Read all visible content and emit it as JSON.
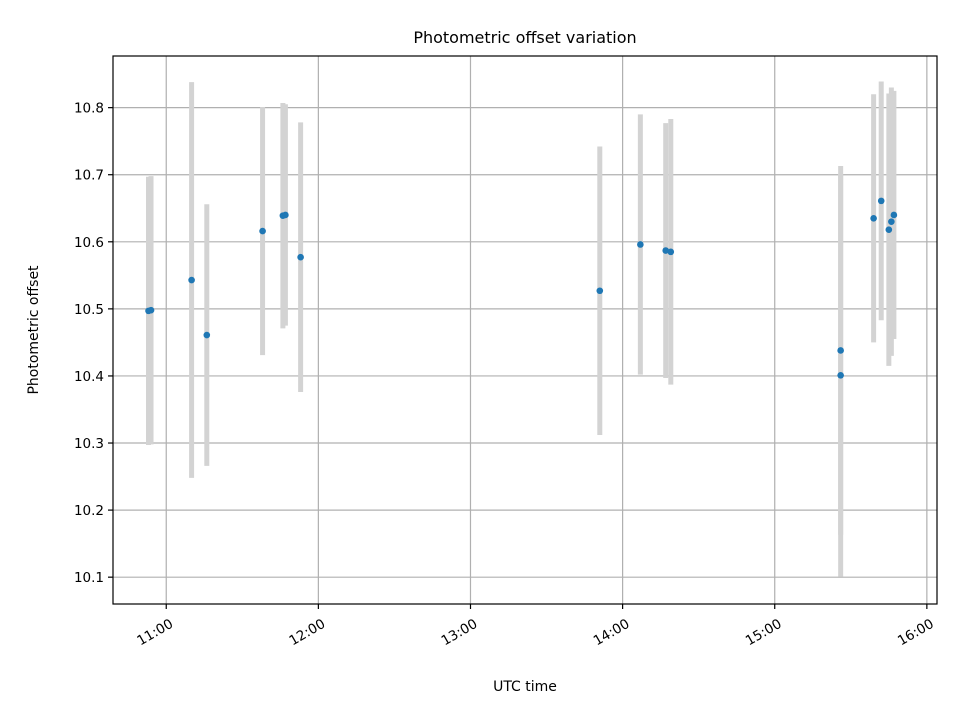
{
  "chart_data": {
    "type": "scatter",
    "title": "Photometric offset variation",
    "xlabel": "UTC time",
    "ylabel": "Photometric offset",
    "x_axis": {
      "type": "time",
      "range": [
        "10:39",
        "16:04"
      ],
      "ticks": [
        "11:00",
        "12:00",
        "13:00",
        "14:00",
        "15:00",
        "16:00"
      ]
    },
    "y_axis": {
      "range": [
        10.06,
        10.877
      ],
      "ticks": [
        10.1,
        10.2,
        10.3,
        10.4,
        10.5,
        10.6,
        10.7,
        10.8
      ],
      "tick_labels": [
        "10.1",
        "10.2",
        "10.3",
        "10.4",
        "10.5",
        "10.6",
        "10.7",
        "10.8"
      ]
    },
    "grid": true,
    "colors": {
      "marker": "#1f77b4",
      "errorbar": "#d3d3d3"
    },
    "series": [
      {
        "points": [
          {
            "x": "10:53",
            "y": 10.497,
            "err": 0.2
          },
          {
            "x": "10:54",
            "y": 10.498,
            "err": 0.2
          },
          {
            "x": "11:10",
            "y": 10.543,
            "err": 0.295
          },
          {
            "x": "11:16",
            "y": 10.461,
            "err": 0.195
          },
          {
            "x": "11:38",
            "y": 10.616,
            "err": 0.185
          },
          {
            "x": "11:46",
            "y": 10.639,
            "err": 0.168
          },
          {
            "x": "11:47",
            "y": 10.64,
            "err": 0.165
          },
          {
            "x": "11:53",
            "y": 10.577,
            "err": 0.201
          },
          {
            "x": "13:51",
            "y": 10.527,
            "err": 0.215
          },
          {
            "x": "14:07",
            "y": 10.596,
            "err": 0.194
          },
          {
            "x": "14:17",
            "y": 10.587,
            "err": 0.19
          },
          {
            "x": "14:19",
            "y": 10.585,
            "err": 0.198
          },
          {
            "x": "15:26",
            "y": 10.438,
            "err": 0.275
          },
          {
            "x": "15:26",
            "y": 10.401,
            "err": 0.3
          },
          {
            "x": "15:39",
            "y": 10.635,
            "err": 0.185
          },
          {
            "x": "15:42",
            "y": 10.661,
            "err": 0.178
          },
          {
            "x": "15:45",
            "y": 10.618,
            "err": 0.203
          },
          {
            "x": "15:46",
            "y": 10.63,
            "err": 0.2
          },
          {
            "x": "15:47",
            "y": 10.64,
            "err": 0.185
          }
        ]
      }
    ]
  }
}
